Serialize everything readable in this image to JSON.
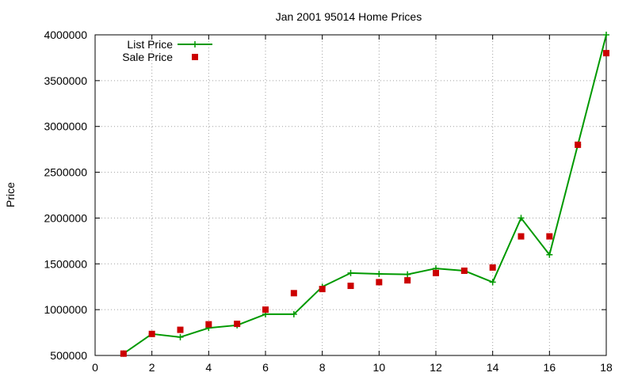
{
  "chart_data": {
    "type": "line",
    "title": "Jan 2001 95014 Home Prices",
    "xlabel": "",
    "ylabel": "Price",
    "xlim": [
      0,
      18
    ],
    "ylim": [
      500000,
      4000000
    ],
    "xticks": [
      0,
      2,
      4,
      6,
      8,
      10,
      12,
      14,
      16,
      18
    ],
    "yticks": [
      500000,
      1000000,
      1500000,
      2000000,
      2500000,
      3000000,
      3500000,
      4000000
    ],
    "xtick_labels": [
      "0",
      "2",
      "4",
      "6",
      "8",
      "10",
      "12",
      "14",
      "16",
      "18"
    ],
    "ytick_labels": [
      "500000",
      "1000000",
      "1500000",
      "2000000",
      "2500000",
      "3000000",
      "3500000",
      "4000000"
    ],
    "grid": true,
    "legend_position": "top-left",
    "series": [
      {
        "name": "List Price",
        "style": "line-plus",
        "color": "#009900",
        "x": [
          1,
          2,
          3,
          4,
          5,
          6,
          7,
          8,
          9,
          10,
          11,
          12,
          13,
          14,
          15,
          16,
          17,
          18
        ],
        "y": [
          520000,
          735000,
          700000,
          800000,
          830000,
          950000,
          950000,
          1250000,
          1400000,
          1390000,
          1385000,
          1450000,
          1425000,
          1300000,
          2000000,
          1600000,
          2800000,
          4000000
        ]
      },
      {
        "name": "Sale Price",
        "style": "points-square",
        "color": "#cc0000",
        "x": [
          1,
          2,
          3,
          4,
          5,
          6,
          7,
          8,
          9,
          10,
          11,
          12,
          13,
          14,
          15,
          16,
          17,
          18
        ],
        "y": [
          520000,
          735000,
          780000,
          840000,
          845000,
          1000000,
          1180000,
          1225000,
          1260000,
          1300000,
          1320000,
          1400000,
          1425000,
          1460000,
          1800000,
          1800000,
          2800000,
          3800000
        ]
      }
    ]
  }
}
